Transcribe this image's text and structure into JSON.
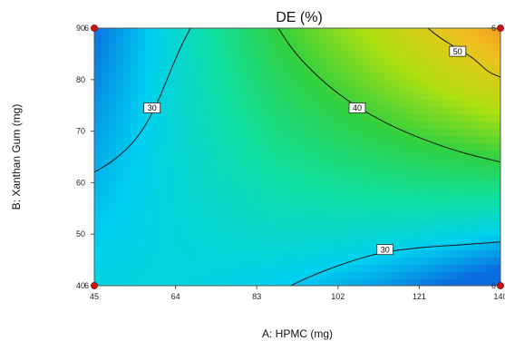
{
  "chart_data": {
    "type": "heatmap",
    "title": "DE (%)",
    "xlabel": "A: HPMC (mg)",
    "ylabel": "B: Xanthan Gum (mg)",
    "xlim": [
      45,
      140
    ],
    "ylim": [
      40,
      90
    ],
    "x_ticks": [
      "45",
      "64",
      "83",
      "102",
      "121",
      "140"
    ],
    "y_ticks": [
      "40",
      "50",
      "60",
      "70",
      "80",
      "90"
    ],
    "design_points": [
      {
        "x": 45,
        "y": 90,
        "label": "6"
      },
      {
        "x": 140,
        "y": 90,
        "label": "6"
      },
      {
        "x": 45,
        "y": 40,
        "label": "6"
      },
      {
        "x": 140,
        "y": 40,
        "label": "6"
      }
    ],
    "contours": [
      {
        "level": 30,
        "label": "30",
        "points": [
          [
            45,
            62
          ],
          [
            50,
            64.5
          ],
          [
            55,
            68.5
          ],
          [
            59,
            74
          ],
          [
            62,
            80
          ],
          [
            65,
            86
          ],
          [
            67.5,
            90
          ]
        ],
        "label_at": [
          58.5,
          74.5
        ]
      },
      {
        "level": 40,
        "label": "40",
        "points": [
          [
            88,
            90
          ],
          [
            92,
            85
          ],
          [
            98,
            80
          ],
          [
            104,
            76
          ],
          [
            112,
            72
          ],
          [
            120,
            69
          ],
          [
            130,
            66
          ],
          [
            140,
            64
          ]
        ],
        "label_at": [
          106.5,
          74.5
        ]
      },
      {
        "level": 50,
        "label": "50",
        "points": [
          [
            123,
            90
          ],
          [
            126,
            88
          ],
          [
            130,
            86
          ],
          [
            134,
            84
          ],
          [
            137,
            81.5
          ],
          [
            140,
            80.5
          ]
        ],
        "label_at": [
          130,
          85.5
        ]
      },
      {
        "level": 30,
        "label": "30",
        "points": [
          [
            91,
            40
          ],
          [
            96,
            42
          ],
          [
            104,
            44.5
          ],
          [
            112,
            46.5
          ],
          [
            122,
            47.5
          ],
          [
            132,
            48
          ],
          [
            140,
            48.5
          ]
        ],
        "label_at": [
          113,
          47
        ]
      }
    ],
    "colorscale": [
      "#0a6ee0",
      "#00d0f0",
      "#10e0a0",
      "#30d040",
      "#b0e010",
      "#f0c020",
      "#f07020"
    ]
  }
}
